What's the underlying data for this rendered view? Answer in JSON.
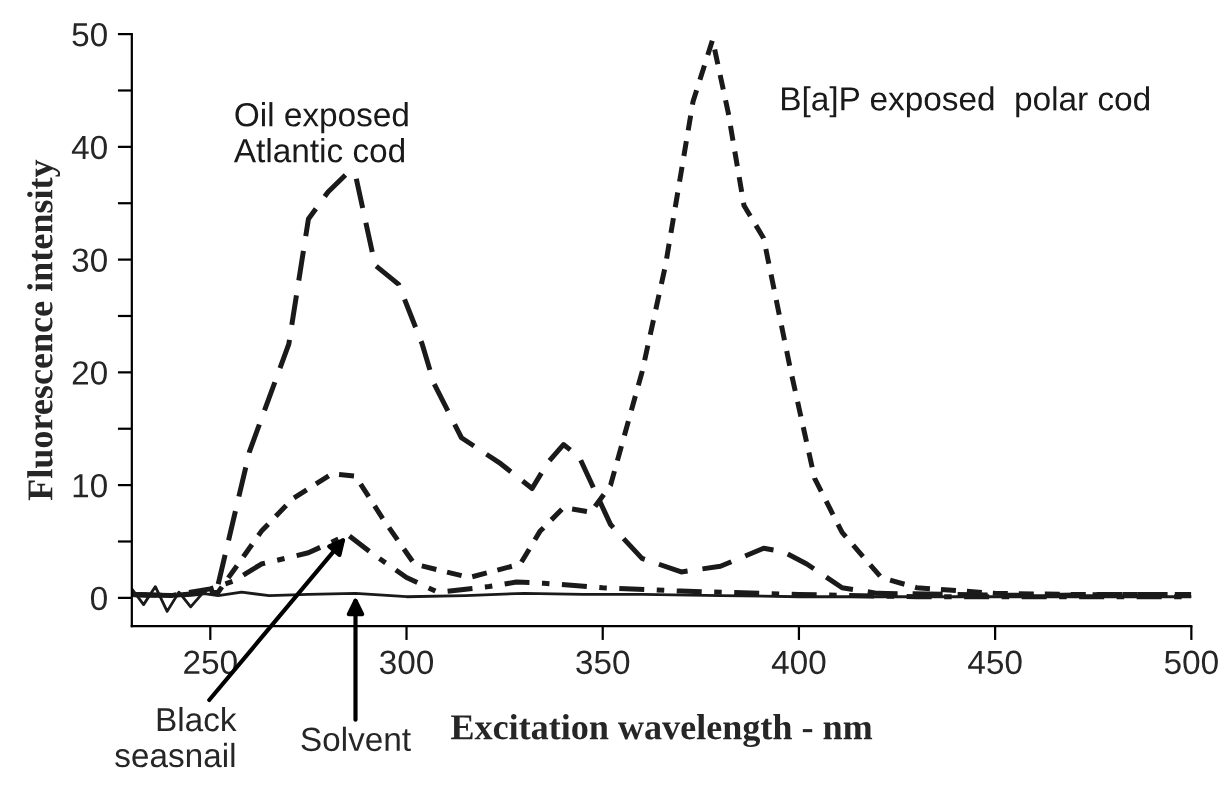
{
  "chart_data": {
    "type": "line",
    "xlabel": "Excitation wavelength - nm",
    "ylabel": "Fluorescence intensity",
    "xlim": [
      230,
      500
    ],
    "xticks": [
      250,
      300,
      350,
      400,
      450,
      500
    ],
    "ylim": [
      -2.5,
      50
    ],
    "yticks": [
      0,
      {
        "value": 5,
        "label": null
      },
      10,
      {
        "value": 15,
        "label": null
      },
      20,
      {
        "value": 25,
        "label": null
      },
      30,
      {
        "value": 35,
        "label": null
      },
      40,
      {
        "value": 45,
        "label": null
      },
      50
    ],
    "grid": false,
    "legend": false,
    "marker": "none",
    "series": [
      {
        "name": "Oil exposed\nAtlantic cod",
        "color": "#1a1a1a",
        "line_style": "dashed",
        "x": [
          230,
          240,
          250,
          252,
          260,
          270,
          275,
          280,
          285,
          287,
          292,
          298,
          304,
          307,
          314,
          324,
          332,
          336,
          340,
          344,
          352,
          360,
          370,
          380,
          391,
          396,
          402,
          411,
          420,
          440,
          460,
          480,
          500
        ],
        "values": [
          0.3,
          0.2,
          0.5,
          1.2,
          13,
          22.5,
          33.6,
          36,
          37.7,
          37.5,
          29.5,
          27.8,
          22.5,
          19,
          14.2,
          11.9,
          9.7,
          12,
          13.6,
          12.5,
          6.5,
          3.5,
          2.3,
          2.8,
          4.4,
          4.1,
          3,
          0.9,
          0.4,
          0.3,
          0.2,
          0.3,
          0.3
        ]
      },
      {
        "name": "B[a]P exposed  polar cod",
        "color": "#1a1a1a",
        "line_style": "dotted",
        "x": [
          230,
          240,
          252,
          263,
          271,
          281,
          287,
          294,
          302,
          316,
          329,
          334,
          340,
          347,
          352,
          360,
          366,
          373,
          378,
          382,
          386,
          391,
          398,
          404,
          411,
          421,
          430,
          450,
          470,
          500
        ],
        "values": [
          0.3,
          0.2,
          0.5,
          5.9,
          8.8,
          11,
          10.8,
          7,
          3,
          1.8,
          3,
          5.9,
          8,
          7.6,
          10,
          20,
          29.5,
          44,
          49.5,
          43,
          34.8,
          31.9,
          20,
          10.6,
          5.8,
          1.8,
          0.9,
          0.4,
          0.3,
          0.3
        ]
      },
      {
        "color": "#1a1a1a",
        "line_style": "dashdot",
        "x": [
          230,
          240,
          250,
          256,
          263,
          275,
          285,
          291,
          300,
          308,
          321,
          328,
          335,
          350,
          370,
          400,
          430,
          460,
          500
        ],
        "values": [
          0.3,
          0.2,
          0.8,
          1.5,
          3,
          4,
          5.6,
          4,
          1.8,
          0.5,
          1,
          1.4,
          1.3,
          0.9,
          0.6,
          0.3,
          0.1,
          0.1,
          0.1
        ]
      },
      {
        "color": "#1a1a1a",
        "line_style": "solid",
        "x": [
          230,
          233,
          236,
          239,
          242,
          245,
          248,
          252,
          258,
          265,
          275,
          287,
          300,
          315,
          330,
          345,
          360,
          380,
          400,
          430,
          460,
          500
        ],
        "values": [
          0.8,
          -0.6,
          1,
          -1.2,
          0.5,
          -0.8,
          0.4,
          0.2,
          0.5,
          0.2,
          0.3,
          0.4,
          0.1,
          0.2,
          0.4,
          0.3,
          0.3,
          0.2,
          0.1,
          0.1,
          0.1,
          0.1
        ]
      }
    ],
    "annotations": [
      {
        "text": "Black\nseasnail",
        "x": 285,
        "y": 5.6
      },
      {
        "text": "Solvent",
        "x": 287,
        "y": 0.4
      }
    ]
  }
}
